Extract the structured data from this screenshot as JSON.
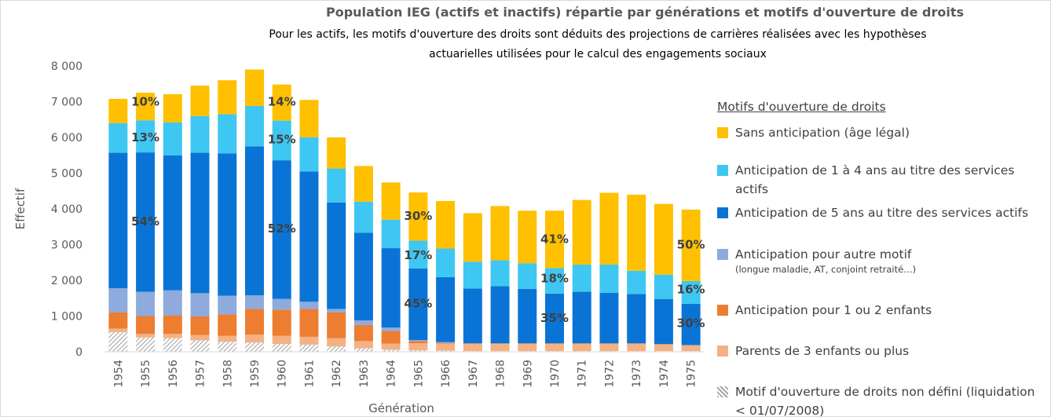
{
  "chart_data": {
    "type": "stacked_bar",
    "title": "Population IEG (actifs et inactifs) répartie par générations et motifs d'ouverture de droits",
    "subtitle": [
      "Pour les actifs, les motifs d'ouverture des droits sont déduits des projections de carrières réalisées avec les hypothèses",
      "actuarielles utilisées pour le calcul des engagements sociaux"
    ],
    "y_label": "Effectif",
    "x_label": "Génération",
    "legend_title": "Motifs d'ouverture de droits",
    "categories": [
      "1954",
      "1955",
      "1956",
      "1957",
      "1958",
      "1959",
      "1960",
      "1961",
      "1962",
      "1963",
      "1964",
      "1965",
      "1966",
      "1967",
      "1968",
      "1969",
      "1970",
      "1971",
      "1972",
      "1973",
      "1974",
      "1975"
    ],
    "ylim": [
      0,
      8000
    ],
    "yticks": [
      0,
      {
        "value": 1000,
        "label": "1 000"
      },
      {
        "value": 2000,
        "label": "2 000"
      },
      {
        "value": 3000,
        "label": "3 000"
      },
      {
        "value": 4000,
        "label": "4 000"
      },
      {
        "value": 5000,
        "label": "5 000"
      },
      {
        "value": 6000,
        "label": "6 000"
      },
      {
        "value": 7000,
        "label": "7 000"
      },
      {
        "value": 8000,
        "label": "8 000"
      }
    ],
    "series": [
      {
        "name": "Motif d'ouverture de droits non défini (liquidation < 01/07/2008)",
        "color": "#a6a6a6",
        "hatch": true,
        "values": [
          550,
          400,
          380,
          320,
          280,
          260,
          220,
          200,
          150,
          100,
          60,
          40,
          30,
          20,
          20,
          20,
          20,
          20,
          20,
          20,
          20,
          20
        ]
      },
      {
        "name": "Parents de 3 enfants ou plus",
        "color": "#f4b183",
        "values": [
          100,
          100,
          120,
          150,
          170,
          220,
          230,
          220,
          230,
          200,
          170,
          200,
          200,
          200,
          200,
          200,
          200,
          200,
          200,
          200,
          180,
          150
        ]
      },
      {
        "name": "Anticipation pour 1 ou 2 enfants",
        "color": "#ed7d31",
        "values": [
          450,
          500,
          520,
          520,
          600,
          720,
          730,
          780,
          720,
          450,
          350,
          60,
          20,
          10,
          10,
          10,
          10,
          10,
          10,
          10,
          10,
          10
        ]
      },
      {
        "name": "Anticipation pour autre motif",
        "note": "(longue maladie, AT, conjoint retraité…)",
        "color": "#8faadc",
        "values": [
          680,
          680,
          700,
          650,
          520,
          380,
          300,
          200,
          100,
          130,
          100,
          30,
          20,
          10,
          10,
          10,
          10,
          10,
          10,
          10,
          10,
          10
        ]
      },
      {
        "name": "Anticipation de 5 ans au titre des services actifs",
        "color": "#0a74d6",
        "values": [
          3790,
          3900,
          3780,
          3930,
          3980,
          4170,
          3880,
          3650,
          2980,
          2450,
          2220,
          2000,
          1820,
          1530,
          1600,
          1520,
          1390,
          1440,
          1410,
          1380,
          1260,
          1150
        ]
      },
      {
        "name": "Anticipation de 1 à 4 ans au titre des services actifs",
        "color": "#3ec7f2",
        "values": [
          830,
          900,
          920,
          1030,
          1100,
          1130,
          1110,
          950,
          950,
          870,
          800,
          780,
          800,
          750,
          720,
          720,
          710,
          760,
          790,
          650,
          680,
          640
        ]
      },
      {
        "name": "Sans anticipation (âge légal)",
        "color": "#ffc000",
        "values": [
          680,
          770,
          790,
          850,
          950,
          1020,
          1010,
          1050,
          870,
          1000,
          1040,
          1350,
          1330,
          1360,
          1520,
          1470,
          1610,
          1810,
          2010,
          2130,
          1980,
          2000
        ]
      }
    ],
    "annotations": [
      {
        "text": "10%",
        "x": "1955",
        "y": 7000
      },
      {
        "text": "13%",
        "x": "1955",
        "y": 6000
      },
      {
        "text": "54%",
        "x": "1955",
        "y": 3650
      },
      {
        "text": "14%",
        "x": "1960",
        "y": 7000
      },
      {
        "text": "15%",
        "x": "1960",
        "y": 5950
      },
      {
        "text": "52%",
        "x": "1960",
        "y": 3450
      },
      {
        "text": "30%",
        "x": "1965",
        "y": 3800
      },
      {
        "text": "17%",
        "x": "1965",
        "y": 2700
      },
      {
        "text": "45%",
        "x": "1965",
        "y": 1350
      },
      {
        "text": "41%",
        "x": "1970",
        "y": 3150
      },
      {
        "text": "18%",
        "x": "1970",
        "y": 2050
      },
      {
        "text": "35%",
        "x": "1970",
        "y": 950
      },
      {
        "text": "50%",
        "x": "1975",
        "y": 3000
      },
      {
        "text": "16%",
        "x": "1975",
        "y": 1750
      },
      {
        "text": "30%",
        "x": "1975",
        "y": 800
      }
    ]
  }
}
